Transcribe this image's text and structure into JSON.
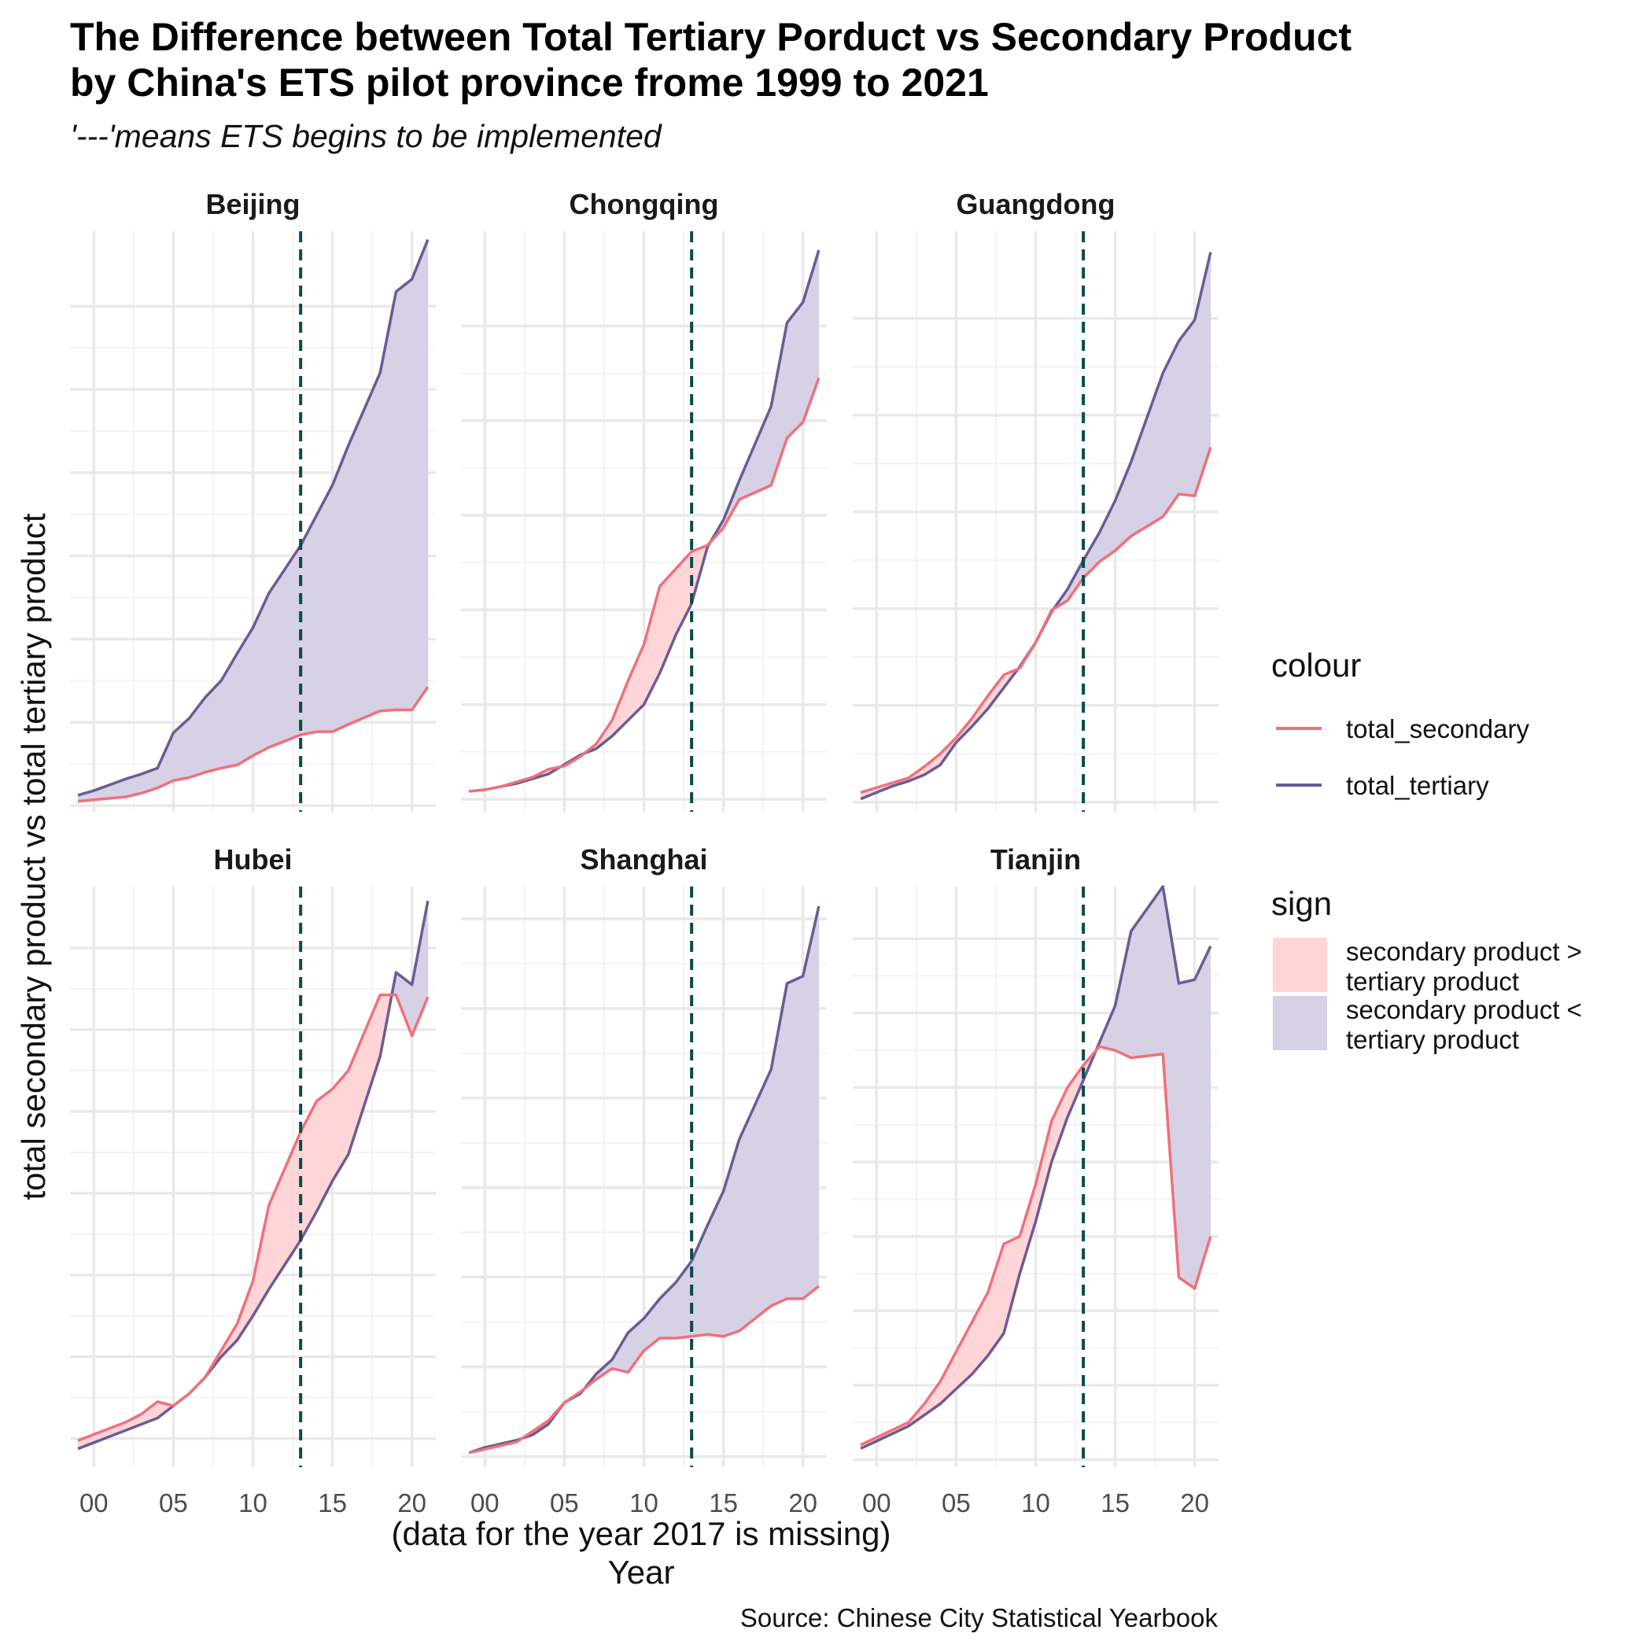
{
  "chart_data": {
    "type": "area",
    "title": [
      "The Difference between Total Tertiary Porduct vs Secondary Product",
      "by China's ETS pilot province frome 1999 to 2021"
    ],
    "subtitle": "'---'means ETS begins to be implemented",
    "xlabel": [
      "(data for the year 2017 is missing)",
      "Year"
    ],
    "ylabel": "total secondary product vs total tertiary product",
    "caption": "Source: Chinese City Statistical Yearbook",
    "x_ticks": [
      2000,
      2005,
      2010,
      2015,
      2020
    ],
    "x_tick_labels": [
      "00",
      "05",
      "10",
      "15",
      "20"
    ],
    "xlim": [
      1998.5,
      2021.5
    ],
    "ets_year": 2013,
    "grid": true,
    "y_axis_labels_shown": false,
    "colors": {
      "total_secondary": "#f0707a",
      "total_tertiary": "#6b5b95",
      "fill_secondary_greater": "#ffd5d8",
      "fill_secondary_less": "#d6d1e4",
      "ets_line": "#0a4a4a",
      "grid_major": "#e9e9e9",
      "grid_minor": "#f3f3f3"
    },
    "legend": {
      "placement": "right",
      "colour_title": "colour",
      "colour_items": [
        "total_secondary",
        "total_tertiary"
      ],
      "sign_title": "sign",
      "sign_items": [
        [
          "secondary product >",
          "tertiary product"
        ],
        [
          "secondary product <",
          "tertiary product"
        ]
      ]
    },
    "facets": [
      {
        "name": "Beijing",
        "years": [
          1999,
          2000,
          2001,
          2002,
          2003,
          2004,
          2005,
          2006,
          2007,
          2008,
          2009,
          2010,
          2011,
          2012,
          2013,
          2014,
          2015,
          2016,
          2018,
          2019,
          2020,
          2021
        ],
        "total_secondary": [
          0.2,
          0.28,
          0.35,
          0.42,
          0.6,
          0.85,
          1.2,
          1.35,
          1.6,
          1.8,
          1.95,
          2.4,
          2.8,
          3.1,
          3.4,
          3.55,
          3.55,
          3.9,
          4.55,
          4.6,
          4.6,
          5.7
        ],
        "total_tertiary": [
          0.5,
          0.72,
          1.0,
          1.28,
          1.52,
          1.8,
          3.5,
          4.2,
          5.2,
          6.0,
          7.3,
          8.55,
          10.2,
          11.35,
          12.5,
          13.95,
          15.4,
          17.3,
          20.8,
          24.7,
          25.3,
          27.2
        ],
        "ylim": [
          -0.3,
          27.6
        ],
        "y_grid": [
          0,
          4,
          8,
          12,
          16,
          20,
          24
        ]
      },
      {
        "name": "Chongqing",
        "years": [
          1999,
          2000,
          2001,
          2002,
          2003,
          2004,
          2005,
          2006,
          2007,
          2008,
          2009,
          2010,
          2011,
          2012,
          2013,
          2014,
          2015,
          2016,
          2018,
          2019,
          2020,
          2021
        ],
        "total_secondary": [
          0.25,
          0.3,
          0.4,
          0.55,
          0.7,
          0.95,
          1.05,
          1.35,
          1.75,
          2.5,
          3.75,
          4.9,
          6.75,
          7.3,
          7.85,
          8.05,
          8.6,
          9.5,
          9.95,
          11.45,
          11.95,
          13.35
        ],
        "total_tertiary": [
          0.25,
          0.3,
          0.4,
          0.5,
          0.65,
          0.8,
          1.1,
          1.4,
          1.6,
          2.0,
          2.5,
          3.0,
          4.0,
          5.2,
          6.2,
          8.0,
          8.85,
          10.1,
          12.45,
          15.1,
          15.75,
          17.4
        ],
        "ylim": [
          -0.4,
          18.0
        ],
        "y_grid": [
          0,
          3,
          6,
          9,
          12,
          15
        ]
      },
      {
        "name": "Guangdong",
        "years": [
          1999,
          2000,
          2001,
          2002,
          2003,
          2004,
          2005,
          2006,
          2007,
          2008,
          2009,
          2010,
          2011,
          2012,
          2013,
          2014,
          2015,
          2016,
          2018,
          2019,
          2020,
          2021
        ],
        "total_secondary": [
          0.3,
          0.45,
          0.6,
          0.75,
          1.1,
          1.5,
          2.0,
          2.6,
          3.3,
          3.95,
          4.15,
          4.95,
          5.95,
          6.25,
          6.95,
          7.45,
          7.8,
          8.25,
          8.85,
          9.55,
          9.5,
          11.0
        ],
        "total_tertiary": [
          0.1,
          0.3,
          0.5,
          0.65,
          0.85,
          1.15,
          1.85,
          2.35,
          2.9,
          3.55,
          4.2,
          4.95,
          5.9,
          6.6,
          7.5,
          8.35,
          9.35,
          10.55,
          13.3,
          14.3,
          14.95,
          17.05
        ],
        "ylim": [
          -0.3,
          17.7
        ],
        "y_grid": [
          0,
          3,
          6,
          9,
          12,
          15
        ]
      },
      {
        "name": "Hubei",
        "years": [
          1999,
          2000,
          2001,
          2002,
          2003,
          2004,
          2005,
          2006,
          2007,
          2008,
          2009,
          2010,
          2011,
          2012,
          2013,
          2014,
          2015,
          2016,
          2018,
          2019,
          2020,
          2021
        ],
        "total_secondary": [
          0.45,
          0.6,
          0.75,
          0.9,
          1.1,
          1.4,
          1.3,
          1.6,
          2.0,
          2.65,
          3.3,
          4.35,
          6.2,
          7.1,
          8.0,
          8.75,
          9.05,
          9.5,
          11.35,
          11.35,
          10.35,
          11.3
        ],
        "total_tertiary": [
          0.25,
          0.4,
          0.55,
          0.7,
          0.85,
          1.0,
          1.3,
          1.6,
          2.0,
          2.5,
          2.9,
          3.5,
          4.15,
          4.75,
          5.35,
          6.05,
          6.8,
          7.45,
          9.85,
          11.9,
          11.6,
          13.65
        ],
        "ylim": [
          -0.2,
          14.0
        ],
        "y_grid": [
          0.5,
          2.5,
          4.5,
          6.5,
          8.5,
          10.5,
          12.5
        ]
      },
      {
        "name": "Shanghai",
        "years": [
          1999,
          2000,
          2001,
          2002,
          2003,
          2004,
          2005,
          2006,
          2007,
          2008,
          2009,
          2010,
          2011,
          2012,
          2013,
          2014,
          2015,
          2016,
          2018,
          2019,
          2020,
          2021
        ],
        "total_secondary": [
          0.1,
          0.2,
          0.3,
          0.4,
          0.7,
          1.0,
          1.5,
          1.8,
          2.15,
          2.45,
          2.35,
          2.95,
          3.3,
          3.3,
          3.35,
          3.4,
          3.35,
          3.5,
          4.2,
          4.4,
          4.4,
          4.75
        ],
        "total_tertiary": [
          0.1,
          0.25,
          0.35,
          0.45,
          0.6,
          0.9,
          1.5,
          1.75,
          2.3,
          2.7,
          3.45,
          3.85,
          4.4,
          4.85,
          5.45,
          6.45,
          7.4,
          8.85,
          10.8,
          13.2,
          13.4,
          15.35
        ],
        "ylim": [
          -0.3,
          15.9
        ],
        "y_grid": [
          0,
          2.5,
          5,
          7.5,
          10,
          12.5,
          15
        ]
      },
      {
        "name": "Tianjin",
        "years": [
          1999,
          2000,
          2001,
          2002,
          2003,
          2004,
          2005,
          2006,
          2007,
          2008,
          2009,
          2010,
          2011,
          2012,
          2013,
          2014,
          2015,
          2016,
          2018,
          2019,
          2020,
          2021
        ],
        "total_secondary": [
          0.2,
          0.3,
          0.4,
          0.5,
          0.75,
          1.05,
          1.45,
          1.85,
          2.25,
          2.9,
          3.0,
          3.7,
          4.55,
          5.0,
          5.3,
          5.55,
          5.5,
          5.4,
          5.45,
          2.45,
          2.3,
          3.0
        ],
        "total_tertiary": [
          0.15,
          0.25,
          0.35,
          0.45,
          0.6,
          0.75,
          0.95,
          1.15,
          1.4,
          1.7,
          2.5,
          3.2,
          4.0,
          4.6,
          5.1,
          5.6,
          6.1,
          7.1,
          7.7,
          6.4,
          6.45,
          6.9
        ],
        "ylim": [
          -0.1,
          7.7
        ],
        "y_grid": [
          0,
          1,
          2,
          3,
          4,
          5,
          6,
          7
        ]
      }
    ]
  }
}
